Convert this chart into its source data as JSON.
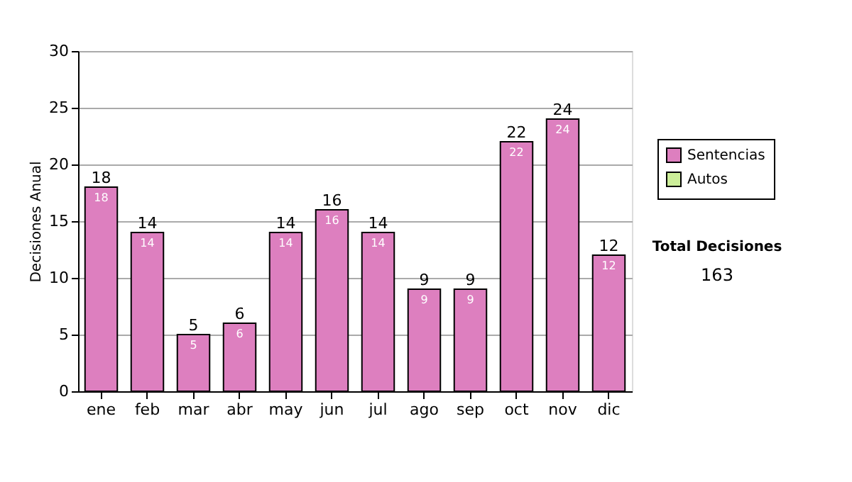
{
  "chart_data": {
    "type": "bar",
    "ylabel": "Decisiones Anual",
    "categories": [
      "ene",
      "feb",
      "mar",
      "abr",
      "may",
      "jun",
      "jul",
      "ago",
      "sep",
      "oct",
      "nov",
      "dic"
    ],
    "series": [
      {
        "name": "Sentencias",
        "color": "#dd7fbf",
        "values": [
          18,
          14,
          5,
          6,
          14,
          16,
          14,
          9,
          9,
          22,
          24,
          12
        ],
        "value_labels": [
          "18",
          "14",
          "5",
          "6",
          "14",
          "16",
          "14",
          "9",
          "9",
          "22",
          "24",
          "12"
        ]
      },
      {
        "name": "Autos",
        "color": "#ccee99",
        "values": [
          null,
          null,
          null,
          null,
          null,
          null,
          null,
          null,
          null,
          null,
          null,
          null
        ]
      }
    ],
    "stacked": true,
    "totals": [
      "18",
      "14",
      "5",
      "6",
      "14",
      "16",
      "14",
      "9",
      "9",
      "22",
      "24",
      "12"
    ],
    "ylim": [
      0,
      30
    ],
    "yticks": [
      0,
      5,
      10,
      15,
      20,
      25,
      30
    ],
    "grid": "y",
    "legend": "right",
    "annotations": [
      "Total Decisiones",
      "163"
    ]
  }
}
